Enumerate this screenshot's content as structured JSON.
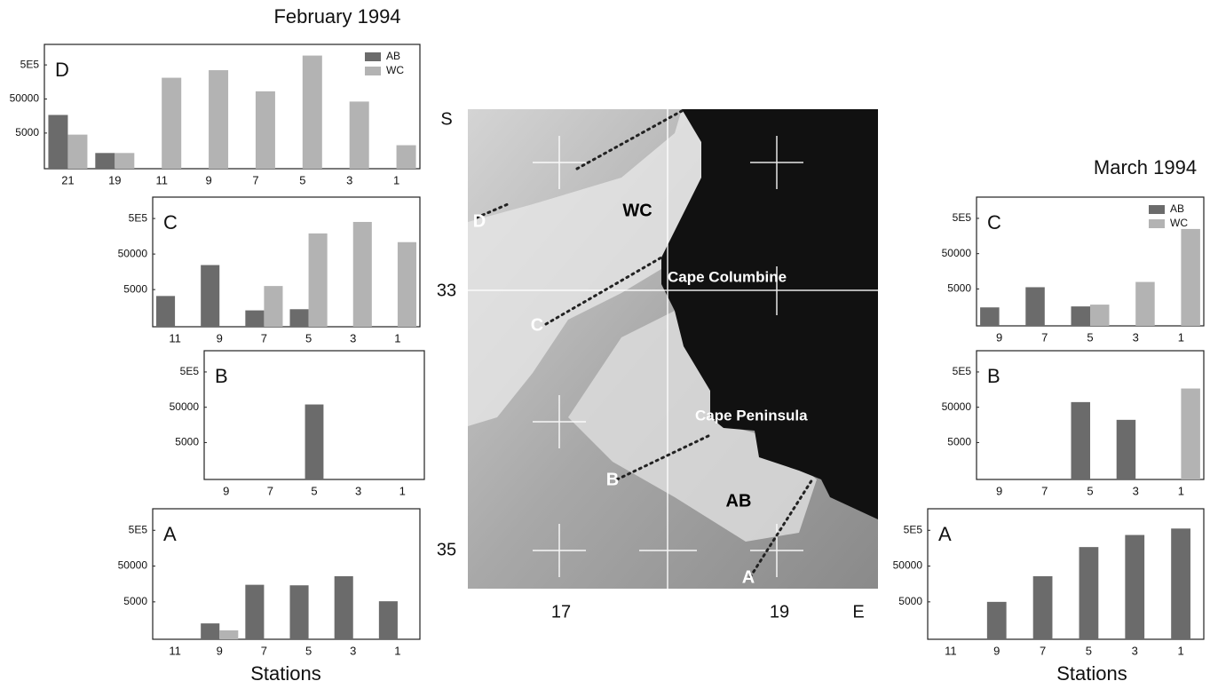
{
  "groups": [
    {
      "title": "February 1994",
      "xlabel": "Stations"
    },
    {
      "title": "March 1994",
      "xlabel": "Stations"
    }
  ],
  "chart_data": [
    {
      "type": "bar",
      "title": "D",
      "yscale": "log",
      "legend": "upper right",
      "categories": [
        "21",
        "19",
        "11",
        "9",
        "7",
        "5",
        "3",
        "1"
      ],
      "series": [
        {
          "name": "AB",
          "color": "#6b6b6b",
          "values": [
            17000,
            1300,
            null,
            null,
            null,
            null,
            null,
            null
          ]
        },
        {
          "name": "WC",
          "color": "#b3b3b3",
          "values": [
            4500,
            1300,
            210000,
            350000,
            84000,
            940000,
            42000,
            2200
          ]
        }
      ],
      "ylim": [
        450,
        2000000
      ],
      "yticks": [
        {
          "value": 500000,
          "label": "5E5"
        },
        50000,
        5000
      ]
    },
    {
      "type": "bar",
      "title": "C",
      "yscale": "log",
      "categories": [
        "11",
        "9",
        "7",
        "5",
        "3",
        "1"
      ],
      "series": [
        {
          "color": "#6b6b6b",
          "values": [
            3300,
            24500,
            1300,
            1400,
            null,
            null
          ]
        },
        {
          "color": "#b3b3b3",
          "values": [
            null,
            null,
            6300,
            190000,
            400000,
            108000
          ]
        }
      ],
      "ylim": [
        450,
        2000000
      ],
      "yticks": [
        {
          "value": 500000,
          "label": "5E5"
        },
        50000,
        5000
      ]
    },
    {
      "type": "bar",
      "title": "B",
      "yscale": "log",
      "categories": [
        "9",
        "7",
        "5",
        "3",
        "1"
      ],
      "series": [
        {
          "color": "#6b6b6b",
          "values": [
            null,
            null,
            60000,
            null,
            null
          ]
        }
      ],
      "ylim": [
        450,
        2000000
      ],
      "yticks": [
        {
          "value": 500000,
          "label": "5E5"
        },
        50000,
        5000
      ]
    },
    {
      "type": "bar",
      "title": "A",
      "yscale": "log",
      "categories": [
        "11",
        "9",
        "7",
        "5",
        "3",
        "1"
      ],
      "series": [
        {
          "color": "#6b6b6b",
          "values": [
            null,
            1250,
            15000,
            14500,
            26000,
            5200
          ]
        },
        {
          "color": "#b3b3b3",
          "values": [
            null,
            800,
            null,
            null,
            null,
            null
          ]
        }
      ],
      "ylim": [
        450,
        2000000
      ],
      "yticks": [
        {
          "value": 500000,
          "label": "5E5"
        },
        50000,
        5000
      ]
    },
    {
      "type": "bar",
      "title": "C",
      "yscale": "log",
      "legend": "upper right",
      "categories": [
        "9",
        "7",
        "5",
        "3",
        "1"
      ],
      "series": [
        {
          "name": "AB",
          "color": "#6b6b6b",
          "values": [
            1500,
            5600,
            1600,
            null,
            null
          ]
        },
        {
          "name": "WC",
          "color": "#b3b3b3",
          "values": [
            null,
            null,
            1800,
            7900,
            250000
          ]
        }
      ],
      "ylim": [
        450,
        2000000
      ],
      "yticks": [
        {
          "value": 500000,
          "label": "5E5"
        },
        50000,
        5000
      ]
    },
    {
      "type": "bar",
      "title": "B",
      "yscale": "log",
      "categories": [
        "9",
        "7",
        "5",
        "3",
        "1"
      ],
      "series": [
        {
          "color": "#6b6b6b",
          "values": [
            null,
            null,
            70000,
            22000,
            null
          ]
        },
        {
          "color": "#b3b3b3",
          "values": [
            null,
            null,
            null,
            null,
            170000
          ]
        }
      ],
      "ylim": [
        450,
        2000000
      ],
      "yticks": [
        {
          "value": 500000,
          "label": "5E5"
        },
        50000,
        5000
      ]
    },
    {
      "type": "bar",
      "title": "A",
      "yscale": "log",
      "categories": [
        "11",
        "9",
        "7",
        "5",
        "3",
        "1"
      ],
      "series": [
        {
          "color": "#6b6b6b",
          "values": [
            null,
            5000,
            26000,
            170000,
            370000,
            560000
          ]
        }
      ],
      "ylim": [
        450,
        2000000
      ],
      "yticks": [
        {
          "value": 500000,
          "label": "5E5"
        },
        50000,
        5000
      ]
    }
  ],
  "map": {
    "axis_labels": [
      "S",
      "33",
      "35",
      "17",
      "19",
      "E"
    ],
    "regions": [
      "WC",
      "AB"
    ],
    "places": [
      "Cape Columbine",
      "Cape Peninsula"
    ],
    "transects": [
      "A",
      "B",
      "C",
      "D"
    ]
  }
}
